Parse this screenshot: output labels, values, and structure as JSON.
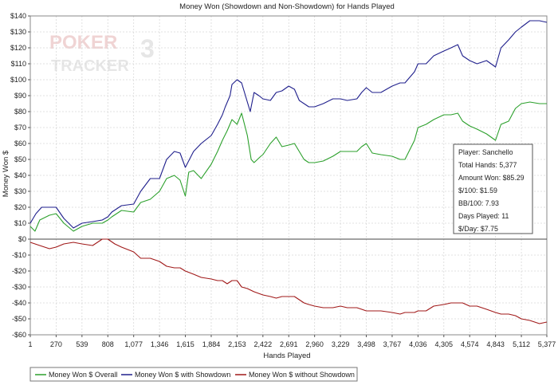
{
  "chart_data": {
    "type": "line",
    "title": "Money Won (Showdown and Non-Showdown) for Hands Played",
    "xlabel": "Hands Played",
    "ylabel": "Money Won $",
    "xlim": [
      1,
      5377
    ],
    "ylim": [
      -60,
      140
    ],
    "x_ticks": [
      1,
      270,
      539,
      808,
      1077,
      1346,
      1615,
      1884,
      2153,
      2422,
      2691,
      2960,
      3229,
      3498,
      3767,
      4036,
      4305,
      4574,
      4843,
      5112,
      5377
    ],
    "x_tick_labels": [
      "1",
      "270",
      "539",
      "808",
      "1,077",
      "1,346",
      "1,615",
      "1,884",
      "2,153",
      "2,422",
      "2,691",
      "2,960",
      "3,229",
      "3,498",
      "3,767",
      "4,036",
      "4,305",
      "4,574",
      "4,843",
      "5,112",
      "5,377"
    ],
    "y_ticks": [
      -60,
      -50,
      -40,
      -30,
      -20,
      -10,
      0,
      10,
      20,
      30,
      40,
      50,
      60,
      70,
      80,
      90,
      100,
      110,
      120,
      130,
      140
    ],
    "y_tick_labels": [
      "-$60",
      "-$50",
      "-$40",
      "-$30",
      "-$20",
      "-$10",
      "$0",
      "$10",
      "$20",
      "$30",
      "$40",
      "$50",
      "$60",
      "$70",
      "$80",
      "$90",
      "$100",
      "$110",
      "$120",
      "$130",
      "$140"
    ],
    "grid": true,
    "legend_position": "bottom-left",
    "series": [
      {
        "name": "Money Won $ Overall",
        "color": "#2ca02c",
        "points": [
          [
            1,
            8
          ],
          [
            50,
            5
          ],
          [
            100,
            12
          ],
          [
            200,
            15
          ],
          [
            270,
            16
          ],
          [
            350,
            10
          ],
          [
            450,
            5
          ],
          [
            539,
            8
          ],
          [
            650,
            10
          ],
          [
            750,
            10
          ],
          [
            808,
            12
          ],
          [
            850,
            14
          ],
          [
            950,
            18
          ],
          [
            1077,
            17
          ],
          [
            1150,
            23
          ],
          [
            1250,
            25
          ],
          [
            1346,
            30
          ],
          [
            1420,
            38
          ],
          [
            1500,
            40
          ],
          [
            1560,
            37
          ],
          [
            1615,
            27
          ],
          [
            1650,
            42
          ],
          [
            1700,
            43
          ],
          [
            1780,
            38
          ],
          [
            1884,
            47
          ],
          [
            1950,
            55
          ],
          [
            2000,
            62
          ],
          [
            2050,
            68
          ],
          [
            2100,
            75
          ],
          [
            2153,
            72
          ],
          [
            2200,
            79
          ],
          [
            2260,
            65
          ],
          [
            2300,
            50
          ],
          [
            2330,
            48
          ],
          [
            2400,
            52
          ],
          [
            2422,
            53
          ],
          [
            2500,
            60
          ],
          [
            2560,
            64
          ],
          [
            2620,
            58
          ],
          [
            2691,
            59
          ],
          [
            2750,
            60
          ],
          [
            2800,
            55
          ],
          [
            2850,
            50
          ],
          [
            2900,
            48
          ],
          [
            2960,
            48
          ],
          [
            3050,
            49
          ],
          [
            3150,
            52
          ],
          [
            3229,
            55
          ],
          [
            3300,
            55
          ],
          [
            3400,
            55
          ],
          [
            3450,
            58
          ],
          [
            3498,
            60
          ],
          [
            3560,
            54
          ],
          [
            3650,
            53
          ],
          [
            3767,
            52
          ],
          [
            3850,
            50
          ],
          [
            3900,
            50
          ],
          [
            4000,
            62
          ],
          [
            4036,
            70
          ],
          [
            4120,
            72
          ],
          [
            4200,
            75
          ],
          [
            4305,
            78
          ],
          [
            4380,
            78
          ],
          [
            4450,
            79
          ],
          [
            4500,
            74
          ],
          [
            4574,
            71
          ],
          [
            4650,
            69
          ],
          [
            4750,
            66
          ],
          [
            4843,
            62
          ],
          [
            4900,
            72
          ],
          [
            4980,
            74
          ],
          [
            5050,
            82
          ],
          [
            5112,
            85
          ],
          [
            5200,
            86
          ],
          [
            5300,
            85
          ],
          [
            5377,
            85
          ]
        ]
      },
      {
        "name": "Money Won $ with Showdown",
        "color": "#1f1f8c",
        "points": [
          [
            1,
            10
          ],
          [
            60,
            16
          ],
          [
            120,
            20
          ],
          [
            200,
            20
          ],
          [
            270,
            20
          ],
          [
            350,
            13
          ],
          [
            450,
            7
          ],
          [
            539,
            10
          ],
          [
            650,
            11
          ],
          [
            750,
            12
          ],
          [
            808,
            14
          ],
          [
            850,
            17
          ],
          [
            950,
            21
          ],
          [
            1077,
            22
          ],
          [
            1150,
            30
          ],
          [
            1250,
            38
          ],
          [
            1346,
            38
          ],
          [
            1420,
            50
          ],
          [
            1500,
            55
          ],
          [
            1560,
            54
          ],
          [
            1615,
            45
          ],
          [
            1700,
            55
          ],
          [
            1780,
            60
          ],
          [
            1884,
            65
          ],
          [
            1950,
            72
          ],
          [
            2000,
            78
          ],
          [
            2030,
            83
          ],
          [
            2080,
            90
          ],
          [
            2100,
            97
          ],
          [
            2153,
            100
          ],
          [
            2200,
            98
          ],
          [
            2250,
            88
          ],
          [
            2290,
            80
          ],
          [
            2330,
            92
          ],
          [
            2380,
            90
          ],
          [
            2422,
            88
          ],
          [
            2500,
            87
          ],
          [
            2560,
            92
          ],
          [
            2620,
            93
          ],
          [
            2691,
            96
          ],
          [
            2750,
            94
          ],
          [
            2800,
            87
          ],
          [
            2850,
            85
          ],
          [
            2900,
            83
          ],
          [
            2960,
            83
          ],
          [
            3050,
            85
          ],
          [
            3150,
            88
          ],
          [
            3229,
            88
          ],
          [
            3300,
            87
          ],
          [
            3400,
            88
          ],
          [
            3450,
            92
          ],
          [
            3498,
            95
          ],
          [
            3560,
            92
          ],
          [
            3650,
            92
          ],
          [
            3767,
            96
          ],
          [
            3850,
            98
          ],
          [
            3900,
            98
          ],
          [
            4000,
            105
          ],
          [
            4036,
            110
          ],
          [
            4120,
            110
          ],
          [
            4200,
            115
          ],
          [
            4305,
            118
          ],
          [
            4380,
            120
          ],
          [
            4450,
            122
          ],
          [
            4500,
            115
          ],
          [
            4574,
            112
          ],
          [
            4650,
            110
          ],
          [
            4750,
            112
          ],
          [
            4843,
            108
          ],
          [
            4900,
            120
          ],
          [
            4980,
            125
          ],
          [
            5050,
            130
          ],
          [
            5112,
            133
          ],
          [
            5200,
            137
          ],
          [
            5300,
            137
          ],
          [
            5377,
            136
          ]
        ]
      },
      {
        "name": "Money Won $ without Showdown",
        "color": "#a01818",
        "points": [
          [
            1,
            -2
          ],
          [
            100,
            -4
          ],
          [
            200,
            -6
          ],
          [
            270,
            -5
          ],
          [
            350,
            -3
          ],
          [
            450,
            -2
          ],
          [
            539,
            -3
          ],
          [
            650,
            -4
          ],
          [
            750,
            0
          ],
          [
            808,
            0
          ],
          [
            880,
            -3
          ],
          [
            950,
            -5
          ],
          [
            1077,
            -8
          ],
          [
            1150,
            -12
          ],
          [
            1250,
            -12
          ],
          [
            1346,
            -14
          ],
          [
            1420,
            -17
          ],
          [
            1500,
            -18
          ],
          [
            1560,
            -18
          ],
          [
            1615,
            -20
          ],
          [
            1700,
            -22
          ],
          [
            1780,
            -24
          ],
          [
            1884,
            -25
          ],
          [
            1950,
            -26
          ],
          [
            2000,
            -26
          ],
          [
            2050,
            -28
          ],
          [
            2100,
            -26
          ],
          [
            2153,
            -26
          ],
          [
            2200,
            -30
          ],
          [
            2260,
            -31
          ],
          [
            2330,
            -33
          ],
          [
            2422,
            -35
          ],
          [
            2500,
            -36
          ],
          [
            2560,
            -37
          ],
          [
            2620,
            -36
          ],
          [
            2691,
            -36
          ],
          [
            2750,
            -36
          ],
          [
            2800,
            -38
          ],
          [
            2850,
            -40
          ],
          [
            2900,
            -41
          ],
          [
            2960,
            -42
          ],
          [
            3050,
            -43
          ],
          [
            3150,
            -43
          ],
          [
            3229,
            -42
          ],
          [
            3300,
            -43
          ],
          [
            3400,
            -43
          ],
          [
            3450,
            -44
          ],
          [
            3498,
            -45
          ],
          [
            3560,
            -45
          ],
          [
            3650,
            -45
          ],
          [
            3767,
            -46
          ],
          [
            3850,
            -47
          ],
          [
            3900,
            -46
          ],
          [
            4000,
            -46
          ],
          [
            4036,
            -45
          ],
          [
            4120,
            -45
          ],
          [
            4200,
            -42
          ],
          [
            4305,
            -41
          ],
          [
            4380,
            -40
          ],
          [
            4450,
            -40
          ],
          [
            4500,
            -40
          ],
          [
            4574,
            -42
          ],
          [
            4650,
            -42
          ],
          [
            4750,
            -44
          ],
          [
            4843,
            -46
          ],
          [
            4900,
            -47
          ],
          [
            4980,
            -47
          ],
          [
            5050,
            -48
          ],
          [
            5112,
            -50
          ],
          [
            5200,
            -51
          ],
          [
            5300,
            -53
          ],
          [
            5377,
            -52
          ]
        ]
      }
    ]
  },
  "info_box": {
    "player": "Player: Sanchello",
    "total_hands": "Total Hands: 5,377",
    "amount_won": "Amount Won: $85.29",
    "per_100": "$/100: $1.59",
    "bb_per_100": "BB/100: 7.93",
    "days_played": "Days Played: 11",
    "per_day": "$/Day: $7.75"
  },
  "watermark": {
    "line1": "POKER",
    "digit": "3",
    "line2": "TRACKER"
  }
}
